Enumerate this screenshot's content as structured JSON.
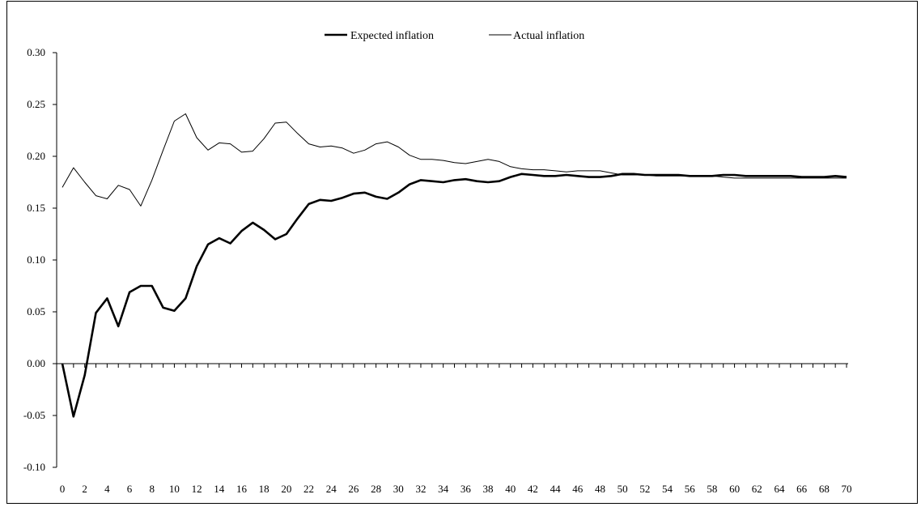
{
  "chart_data": {
    "type": "line",
    "title": "",
    "xlabel": "",
    "ylabel": "",
    "xlim": [
      0,
      70
    ],
    "ylim": [
      -0.1,
      0.3
    ],
    "y_ticks": [
      "-0.10",
      "-0.05",
      "0.00",
      "0.05",
      "0.10",
      "0.15",
      "0.20",
      "0.25",
      "0.30"
    ],
    "x_ticks": [
      "0",
      "2",
      "4",
      "6",
      "8",
      "10",
      "12",
      "14",
      "16",
      "18",
      "20",
      "22",
      "24",
      "26",
      "28",
      "30",
      "32",
      "34",
      "36",
      "38",
      "40",
      "42",
      "44",
      "46",
      "48",
      "50",
      "52",
      "54",
      "56",
      "58",
      "60",
      "62",
      "64",
      "66",
      "68",
      "70"
    ],
    "grid": false,
    "legend_position": "top-center",
    "x": [
      0,
      1,
      2,
      3,
      4,
      5,
      6,
      7,
      8,
      9,
      10,
      11,
      12,
      13,
      14,
      15,
      16,
      17,
      18,
      19,
      20,
      21,
      22,
      23,
      24,
      25,
      26,
      27,
      28,
      29,
      30,
      31,
      32,
      33,
      34,
      35,
      36,
      37,
      38,
      39,
      40,
      41,
      42,
      43,
      44,
      45,
      46,
      47,
      48,
      49,
      50,
      51,
      52,
      53,
      54,
      55,
      56,
      57,
      58,
      59,
      60,
      61,
      62,
      63,
      64,
      65,
      66,
      67,
      68,
      69,
      70
    ],
    "series": [
      {
        "name": "Expected inflation",
        "color": "#000000",
        "line_weight": "thick",
        "values": [
          0.0,
          -0.051,
          -0.011,
          0.049,
          0.063,
          0.036,
          0.069,
          0.075,
          0.075,
          0.054,
          0.051,
          0.063,
          0.094,
          0.115,
          0.121,
          0.116,
          0.128,
          0.136,
          0.129,
          0.12,
          0.125,
          0.14,
          0.154,
          0.158,
          0.157,
          0.16,
          0.164,
          0.165,
          0.161,
          0.159,
          0.165,
          0.173,
          0.177,
          0.176,
          0.175,
          0.177,
          0.178,
          0.176,
          0.175,
          0.176,
          0.18,
          0.183,
          0.182,
          0.181,
          0.181,
          0.182,
          0.181,
          0.18,
          0.18,
          0.181,
          0.183,
          0.183,
          0.182,
          0.182,
          0.182,
          0.182,
          0.181,
          0.181,
          0.181,
          0.182,
          0.182,
          0.181,
          0.181,
          0.181,
          0.181,
          0.181,
          0.18,
          0.18,
          0.18,
          0.181,
          0.18
        ]
      },
      {
        "name": "Actual inflation",
        "color": "#000000",
        "line_weight": "thin",
        "values": [
          0.17,
          0.189,
          0.175,
          0.162,
          0.159,
          0.172,
          0.168,
          0.152,
          0.177,
          0.206,
          0.234,
          0.241,
          0.218,
          0.206,
          0.213,
          0.212,
          0.204,
          0.205,
          0.217,
          0.232,
          0.233,
          0.222,
          0.212,
          0.209,
          0.21,
          0.208,
          0.203,
          0.206,
          0.212,
          0.214,
          0.209,
          0.201,
          0.197,
          0.197,
          0.196,
          0.194,
          0.193,
          0.195,
          0.197,
          0.195,
          0.19,
          0.188,
          0.187,
          0.187,
          0.186,
          0.185,
          0.186,
          0.186,
          0.186,
          0.184,
          0.182,
          0.182,
          0.182,
          0.181,
          0.181,
          0.181,
          0.181,
          0.181,
          0.181,
          0.18,
          0.179,
          0.179,
          0.179,
          0.179,
          0.179,
          0.179,
          0.179,
          0.179,
          0.179,
          0.179,
          0.179
        ]
      }
    ]
  }
}
